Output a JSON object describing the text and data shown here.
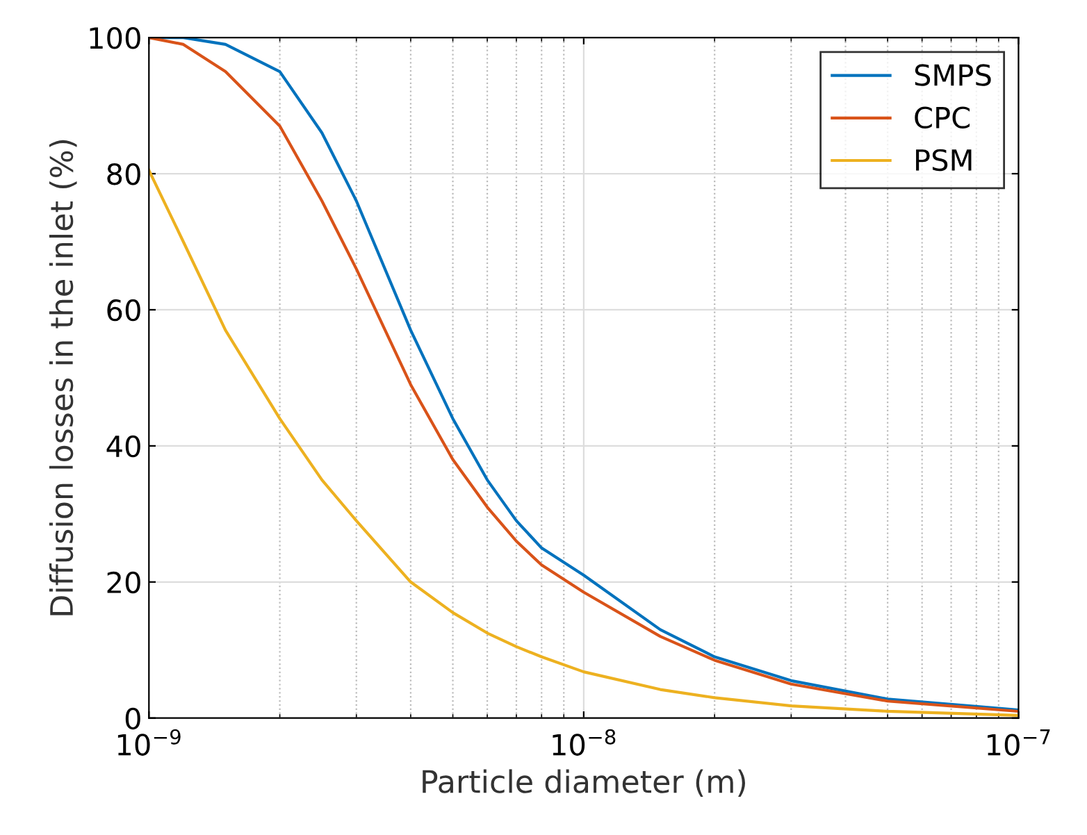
{
  "chart_data": {
    "type": "line",
    "xlabel": "Particle diameter (m)",
    "ylabel": "Diffusion losses in the inlet (%)",
    "log": "x",
    "grid": true,
    "legend": "top right",
    "marker": "none",
    "line_style": "solid",
    "xlim": [
      1e-09,
      1e-07
    ],
    "xticks": [
      {
        "value": 1e-09,
        "label": "10$^{−9}$"
      },
      {
        "value": 1e-08,
        "label": "10$^{−8}$"
      },
      {
        "value": 1e-07,
        "label": "10$^{−7}$"
      }
    ],
    "ylim": [
      0,
      100
    ],
    "yticks": [
      0,
      20,
      40,
      60,
      80,
      100
    ],
    "x": [
      1e-09,
      1.2e-09,
      1.5e-09,
      2e-09,
      2.5e-09,
      3e-09,
      4e-09,
      5e-09,
      6e-09,
      7e-09,
      8e-09,
      1e-08,
      1.5e-08,
      2e-08,
      3e-08,
      5e-08,
      1e-07
    ],
    "series": [
      {
        "name": "SMPS",
        "color": "#0072bd",
        "values": [
          100,
          100,
          99,
          95,
          86,
          76,
          57,
          44,
          35,
          29,
          25,
          21,
          13,
          9,
          5.5,
          2.8,
          1.2
        ]
      },
      {
        "name": "CPC",
        "color": "#d95319",
        "values": [
          100,
          99,
          95,
          87,
          76,
          66,
          49,
          38,
          31,
          26,
          22.5,
          18.5,
          12,
          8.5,
          5,
          2.5,
          1
        ]
      },
      {
        "name": "PSM",
        "color": "#edb120",
        "values": [
          80.5,
          70,
          57,
          44,
          35,
          29,
          20,
          15.5,
          12.5,
          10.5,
          9,
          6.8,
          4.2,
          3,
          1.8,
          1,
          0.4
        ]
      }
    ]
  }
}
